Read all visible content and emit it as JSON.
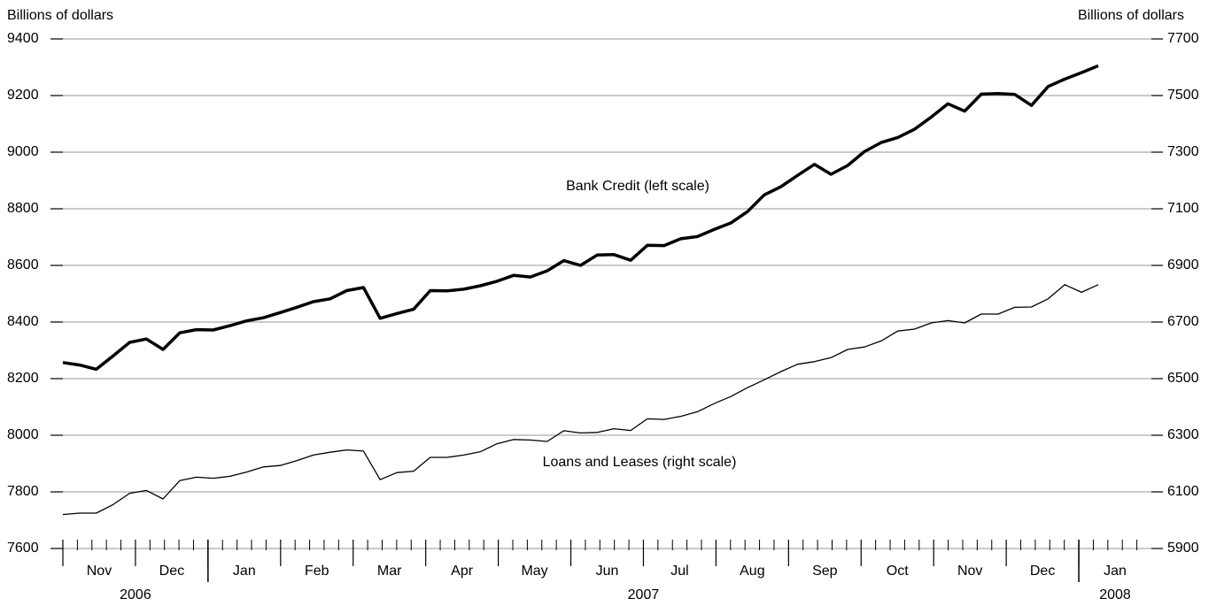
{
  "chart_data": {
    "type": "line",
    "y_label": "Billions of dollars",
    "y2_label": "Billions of dollars",
    "months": [
      "Nov",
      "Dec",
      "Jan",
      "Feb",
      "Mar",
      "Apr",
      "May",
      "Jun",
      "Jul",
      "Aug",
      "Sep",
      "Oct",
      "Nov",
      "Dec",
      "Jan"
    ],
    "years": [
      {
        "label": "2006",
        "months": 2
      },
      {
        "label": "2007",
        "months": 12
      },
      {
        "label": "2008",
        "months": 1
      }
    ],
    "ylim": [
      7600,
      9400
    ],
    "yticks": [
      7600,
      7800,
      8000,
      8200,
      8400,
      8600,
      8800,
      9000,
      9200,
      9400
    ],
    "y2lim": [
      5900,
      7700
    ],
    "y2ticks": [
      5900,
      6100,
      6300,
      6500,
      6700,
      6900,
      7100,
      7300,
      7500,
      7700
    ],
    "grid": true,
    "series": [
      {
        "name": "Bank Credit (left scale)",
        "color": "#000000",
        "width": 3.5,
        "axis": "y",
        "values": [
          8257,
          8248,
          8233,
          8280,
          8328,
          8340,
          8303,
          8362,
          8373,
          8372,
          8387,
          8404,
          8415,
          8433,
          8452,
          8472,
          8482,
          8511,
          8522,
          8413,
          8430,
          8445,
          8511,
          8510,
          8516,
          8528,
          8544,
          8565,
          8559,
          8581,
          8617,
          8600,
          8637,
          8638,
          8618,
          8671,
          8670,
          8694,
          8702,
          8727,
          8750,
          8790,
          8849,
          8878,
          8918,
          8957,
          8922,
          8953,
          9002,
          9034,
          9052,
          9081,
          9124,
          9171,
          9145,
          9205,
          9207,
          9204,
          9165,
          9232,
          9258,
          9281,
          9305
        ]
      },
      {
        "name": "Loans and Leases (right scale)",
        "color": "#000000",
        "width": 1.3,
        "axis": "y2",
        "values": [
          6020,
          6025,
          6025,
          6055,
          6095,
          6105,
          6075,
          6140,
          6152,
          6148,
          6155,
          6170,
          6188,
          6193,
          6210,
          6230,
          6240,
          6248,
          6244,
          6143,
          6168,
          6173,
          6222,
          6222,
          6230,
          6242,
          6270,
          6285,
          6283,
          6278,
          6316,
          6308,
          6310,
          6323,
          6317,
          6358,
          6356,
          6367,
          6383,
          6412,
          6437,
          6468,
          6496,
          6525,
          6551,
          6560,
          6574,
          6603,
          6612,
          6633,
          6668,
          6675,
          6697,
          6705,
          6697,
          6728,
          6728,
          6752,
          6753,
          6782,
          6832,
          6805,
          6832
        ]
      }
    ]
  }
}
